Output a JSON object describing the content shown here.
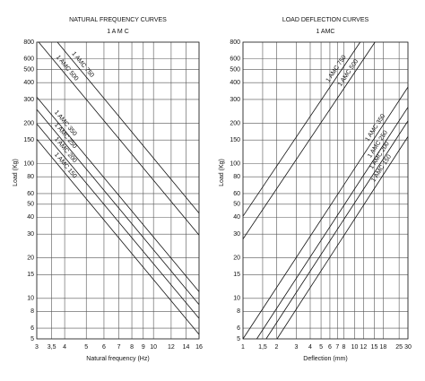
{
  "chart_data": [
    {
      "type": "line",
      "title": "NATURAL FREQUENCY CURVES",
      "subtitle": "1 A M C",
      "xlabel": "Natural frequency (Hz)",
      "ylabel": "Load (Kg)",
      "xlog": true,
      "ylog": true,
      "grid": true,
      "xlim": [
        3,
        16
      ],
      "ylim": [
        5,
        800
      ],
      "xticks": [
        3,
        {
          "value": 3.5,
          "label": "3,5"
        },
        4,
        5,
        6,
        7,
        8,
        9,
        10,
        12,
        14,
        16
      ],
      "yticks": [
        5,
        6,
        8,
        10,
        15,
        20,
        30,
        40,
        50,
        60,
        80,
        100,
        150,
        200,
        300,
        400,
        500,
        600,
        800
      ],
      "series": [
        {
          "name": "1 AMC 750",
          "color": "#111111",
          "x": [
            3.71,
            16
          ],
          "values": [
            800,
            43
          ]
        },
        {
          "name": "1 AMC 500",
          "color": "#111111",
          "x": [
            3.06,
            16
          ],
          "values": [
            800,
            29.5
          ]
        },
        {
          "name": "1 AMC 350",
          "color": "#111111",
          "x": [
            3,
            16
          ],
          "values": [
            313,
            11.2
          ]
        },
        {
          "name": "1 AMC 250",
          "color": "#111111",
          "x": [
            3,
            16
          ],
          "values": [
            253,
            9
          ]
        },
        {
          "name": "1 AMC 200",
          "color": "#111111",
          "x": [
            3,
            16
          ],
          "values": [
            198,
            7.1
          ]
        },
        {
          "name": "1 AMC 150",
          "color": "#111111",
          "x": [
            3,
            16
          ],
          "values": [
            152,
            5.4
          ]
        }
      ]
    },
    {
      "type": "line",
      "title": "LOAD DEFLECTION CURVES",
      "subtitle": "1 AMC",
      "xlabel": "Deflection (mm)",
      "ylabel": "Load (Kg)",
      "xlog": true,
      "ylog": true,
      "grid": true,
      "xlim": [
        1,
        30
      ],
      "ylim": [
        5,
        800
      ],
      "xticks": [
        1,
        {
          "value": 1.5,
          "label": "1,5"
        },
        2,
        3,
        4,
        5,
        6,
        7,
        8,
        10,
        12,
        15,
        18,
        25,
        30
      ],
      "yticks": [
        5,
        6,
        8,
        10,
        15,
        20,
        30,
        40,
        50,
        60,
        80,
        100,
        150,
        200,
        300,
        400,
        500,
        600,
        800
      ],
      "series": [
        {
          "name": "1 AMC 750",
          "color": "#111111",
          "x": [
            1,
            11.2
          ],
          "values": [
            40.7,
            800
          ]
        },
        {
          "name": "1 AMC 500",
          "color": "#111111",
          "x": [
            1,
            15.2
          ],
          "values": [
            27.6,
            800
          ]
        },
        {
          "name": "1 AMC 350",
          "color": "#111111",
          "x": [
            1,
            30
          ],
          "values": [
            5,
            371
          ]
        },
        {
          "name": "1 AMC 250",
          "color": "#111111",
          "x": [
            1.33,
            30
          ],
          "values": [
            5,
            263
          ]
        },
        {
          "name": "1 AMC 200",
          "color": "#111111",
          "x": [
            1.61,
            30
          ],
          "values": [
            5,
            208
          ]
        },
        {
          "name": "1 AMC 150",
          "color": "#111111",
          "x": [
            2.02,
            30
          ],
          "values": [
            5,
            159
          ]
        }
      ]
    }
  ]
}
